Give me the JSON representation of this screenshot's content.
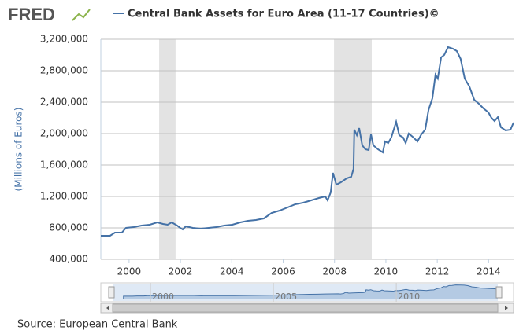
{
  "logo": "FRED",
  "source": "Source: European Central Bank",
  "chart_data": {
    "type": "line",
    "y_label": "(Millions of Euros)",
    "x": [
      1998.9,
      1999.26,
      1999.45,
      1999.72,
      1999.88,
      2000.18,
      2000.49,
      2000.8,
      2001.1,
      2001.32,
      2001.5,
      2001.66,
      2001.87,
      2001.99,
      2002.09,
      2002.21,
      2002.48,
      2002.79,
      2003.1,
      2003.4,
      2003.71,
      2004.02,
      2004.33,
      2004.63,
      2004.94,
      2005.25,
      2005.55,
      2005.86,
      2006.17,
      2006.47,
      2006.78,
      2007.09,
      2007.39,
      2007.64,
      2007.73,
      2007.85,
      2007.94,
      2008.07,
      2008.25,
      2008.47,
      2008.65,
      2008.74,
      2008.77,
      2008.87,
      2008.96,
      2009.08,
      2009.2,
      2009.33,
      2009.42,
      2009.51,
      2009.69,
      2009.88,
      2009.97,
      2010.09,
      2010.21,
      2010.4,
      2010.52,
      2010.67,
      2010.77,
      2010.89,
      2011.04,
      2011.23,
      2011.38,
      2011.53,
      2011.66,
      2011.81,
      2011.93,
      2012.02,
      2012.15,
      2012.27,
      2012.42,
      2012.61,
      2012.76,
      2012.91,
      2013.07,
      2013.25,
      2013.44,
      2013.62,
      2013.8,
      2013.99,
      2014.11,
      2014.23,
      2014.36,
      2014.48,
      2014.66,
      2014.85,
      2014.97
    ],
    "series": [
      {
        "name": "Central Bank Assets for Euro Area (11-17 Countries)©",
        "color": "#4572a7",
        "values": [
          700000,
          700000,
          740000,
          740000,
          800000,
          810000,
          830000,
          840000,
          870000,
          850000,
          840000,
          870000,
          830000,
          800000,
          780000,
          820000,
          800000,
          790000,
          800000,
          810000,
          830000,
          840000,
          870000,
          890000,
          900000,
          920000,
          990000,
          1020000,
          1060000,
          1100000,
          1120000,
          1150000,
          1180000,
          1200000,
          1150000,
          1250000,
          1500000,
          1350000,
          1380000,
          1430000,
          1450000,
          1550000,
          2050000,
          1980000,
          2070000,
          1850000,
          1800000,
          1790000,
          1990000,
          1850000,
          1800000,
          1760000,
          1900000,
          1880000,
          1950000,
          2150000,
          1980000,
          1950000,
          1880000,
          2000000,
          1960000,
          1900000,
          1990000,
          2050000,
          2300000,
          2450000,
          2750000,
          2700000,
          2970000,
          3000000,
          3100000,
          3080000,
          3050000,
          2950000,
          2700000,
          2600000,
          2430000,
          2380000,
          2320000,
          2270000,
          2200000,
          2160000,
          2210000,
          2080000,
          2040000,
          2050000,
          2140000
        ]
      }
    ],
    "xlim": [
      1998.9,
      2014.97
    ],
    "xticks": [
      2000,
      2002,
      2004,
      2006,
      2008,
      2010,
      2012,
      2014
    ],
    "ylim": [
      400000,
      3200000
    ],
    "yticks": [
      {
        "value": 400000,
        "label": "400,000"
      },
      {
        "value": 800000,
        "label": "800,000"
      },
      {
        "value": 1200000,
        "label": "1,200,000"
      },
      {
        "value": 1600000,
        "label": "1,600,000"
      },
      {
        "value": 2000000,
        "label": "2,000,000"
      },
      {
        "value": 2400000,
        "label": "2,400,000"
      },
      {
        "value": 2800000,
        "label": "2,800,000"
      },
      {
        "value": 3200000,
        "label": "3,200,000"
      }
    ],
    "grid": true,
    "shaded_ranges": [
      [
        2001.17,
        2001.81
      ],
      [
        2007.98,
        2009.45
      ]
    ],
    "shade_color": "#e3e3e3",
    "navigator": {
      "xlim": [
        1998.46,
        2014.13
      ],
      "xticks": [
        2000,
        2005,
        2010
      ]
    }
  }
}
